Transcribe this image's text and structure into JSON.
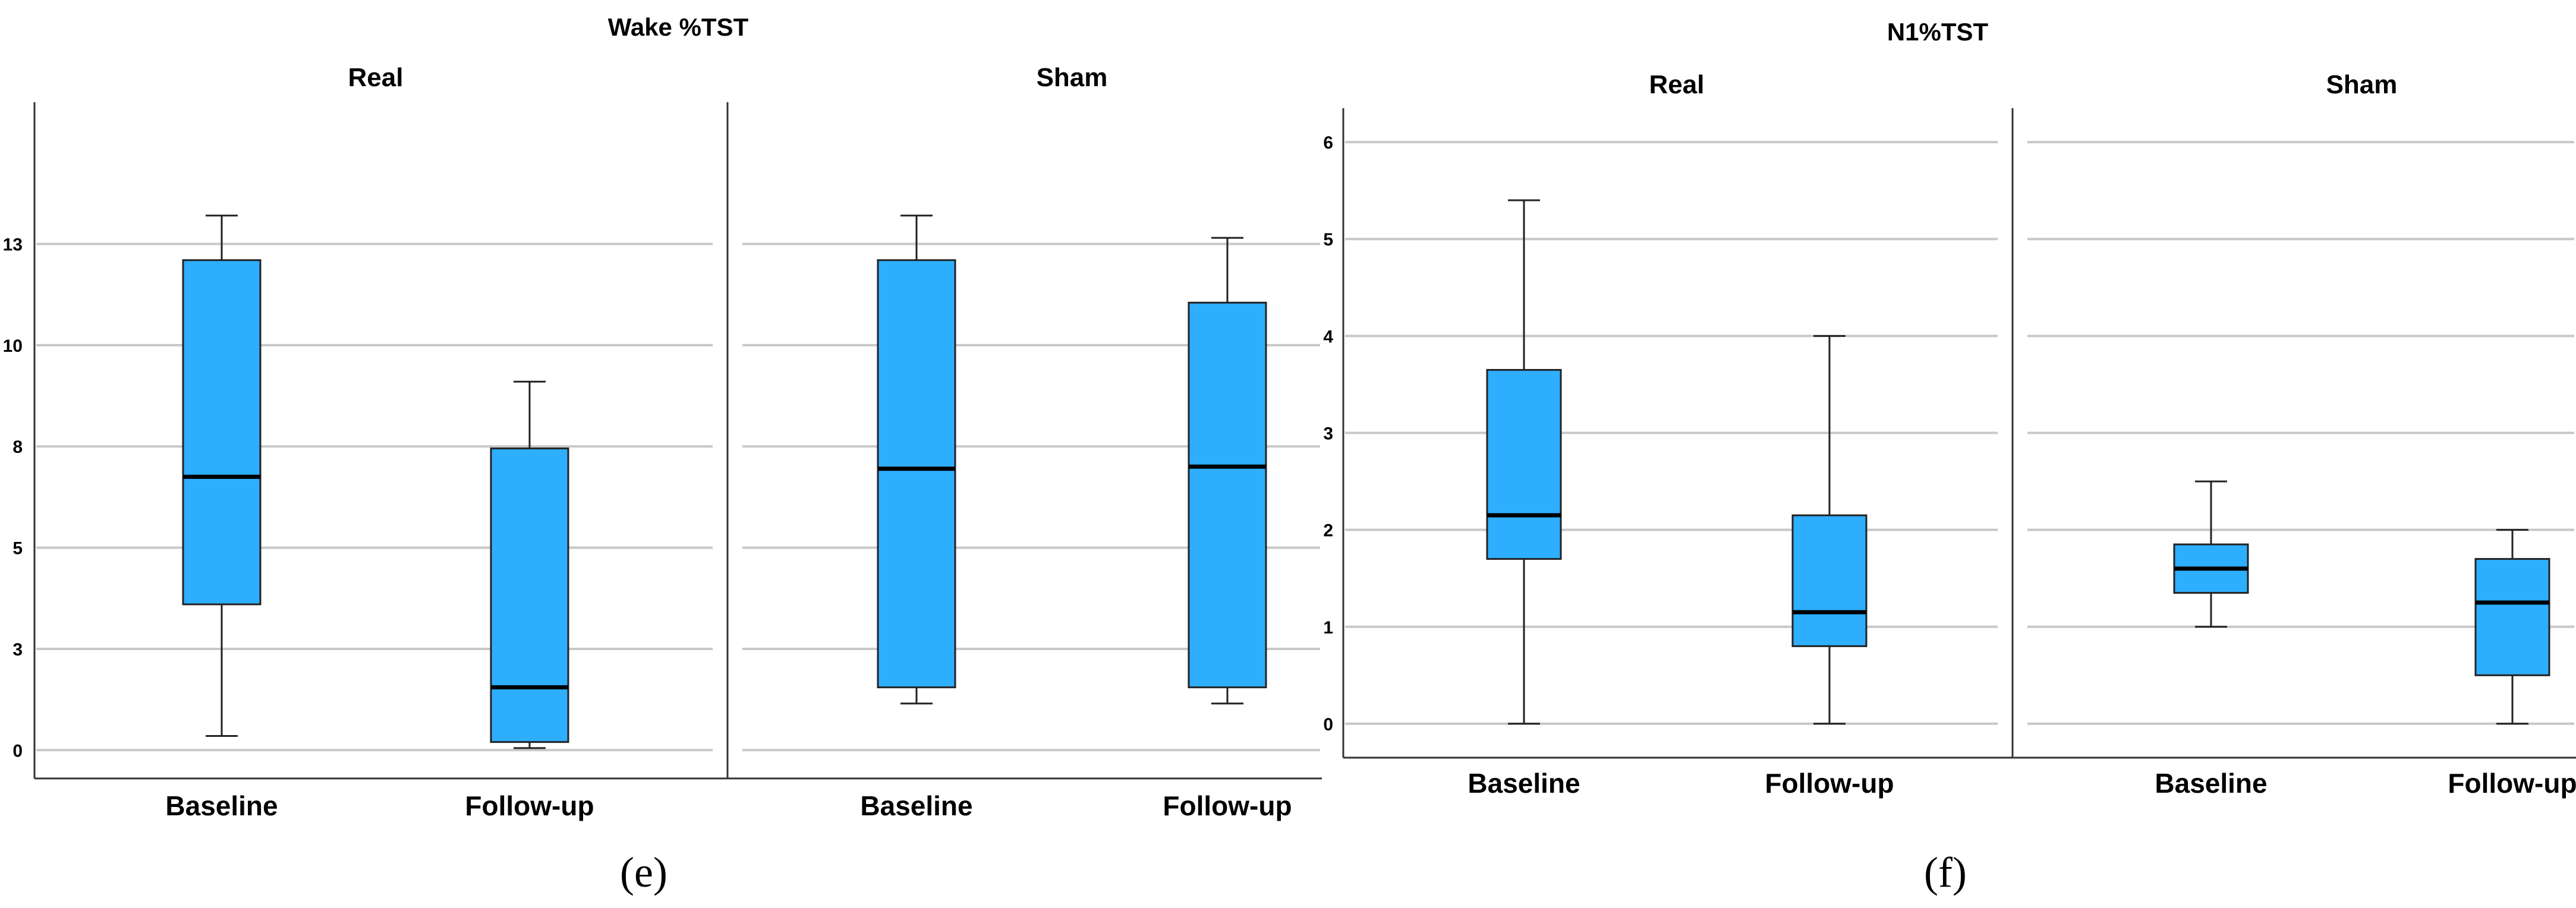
{
  "chart_data": [
    {
      "type": "box",
      "title": "Wake %TST",
      "caption": "(e)",
      "yticks": [
        "0",
        "3",
        "5",
        "8",
        "10",
        "13"
      ],
      "ylim": [
        -0.7,
        16
      ],
      "box_color": "#2EAEFF",
      "panels": [
        {
          "name": "Real",
          "categories": [
            "Baseline",
            "Follow-up"
          ],
          "boxes": [
            {
              "category": "Baseline",
              "min": 0.35,
              "q1": 3.6,
              "median": 6.75,
              "q3": 12.1,
              "max": 13.2
            },
            {
              "category": "Follow-up",
              "min": 0.05,
              "q1": 0.2,
              "median": 1.55,
              "q3": 7.45,
              "max": 9.1
            }
          ]
        },
        {
          "name": "Sham",
          "categories": [
            "Baseline",
            "Follow-up"
          ],
          "boxes": [
            {
              "category": "Baseline",
              "min": 1.15,
              "q1": 1.55,
              "median": 6.95,
              "q3": 12.1,
              "max": 13.2
            },
            {
              "category": "Follow-up",
              "min": 1.15,
              "q1": 1.55,
              "median": 7.0,
              "q3": 11.05,
              "max": 12.65
            }
          ]
        }
      ]
    },
    {
      "type": "box",
      "title": "N1%TST",
      "caption": "(f)",
      "yticks": [
        "0",
        "1",
        "2",
        "3",
        "4",
        "5",
        "6"
      ],
      "ylim": [
        -0.35,
        6.35
      ],
      "box_color": "#2EAEFF",
      "panels": [
        {
          "name": "Real",
          "categories": [
            "Baseline",
            "Follow-up"
          ],
          "boxes": [
            {
              "category": "Baseline",
              "min": 0,
              "q1": 1.7,
              "median": 2.15,
              "q3": 3.65,
              "max": 5.4
            },
            {
              "category": "Follow-up",
              "min": 0,
              "q1": 0.8,
              "median": 1.15,
              "q3": 2.15,
              "max": 4.0
            }
          ]
        },
        {
          "name": "Sham",
          "categories": [
            "Baseline",
            "Follow-up"
          ],
          "boxes": [
            {
              "category": "Baseline",
              "min": 1.0,
              "q1": 1.35,
              "median": 1.6,
              "q3": 1.85,
              "max": 2.5
            },
            {
              "category": "Follow-up",
              "min": 0,
              "q1": 0.5,
              "median": 1.25,
              "q3": 1.7,
              "max": 2.0
            }
          ]
        }
      ]
    }
  ]
}
